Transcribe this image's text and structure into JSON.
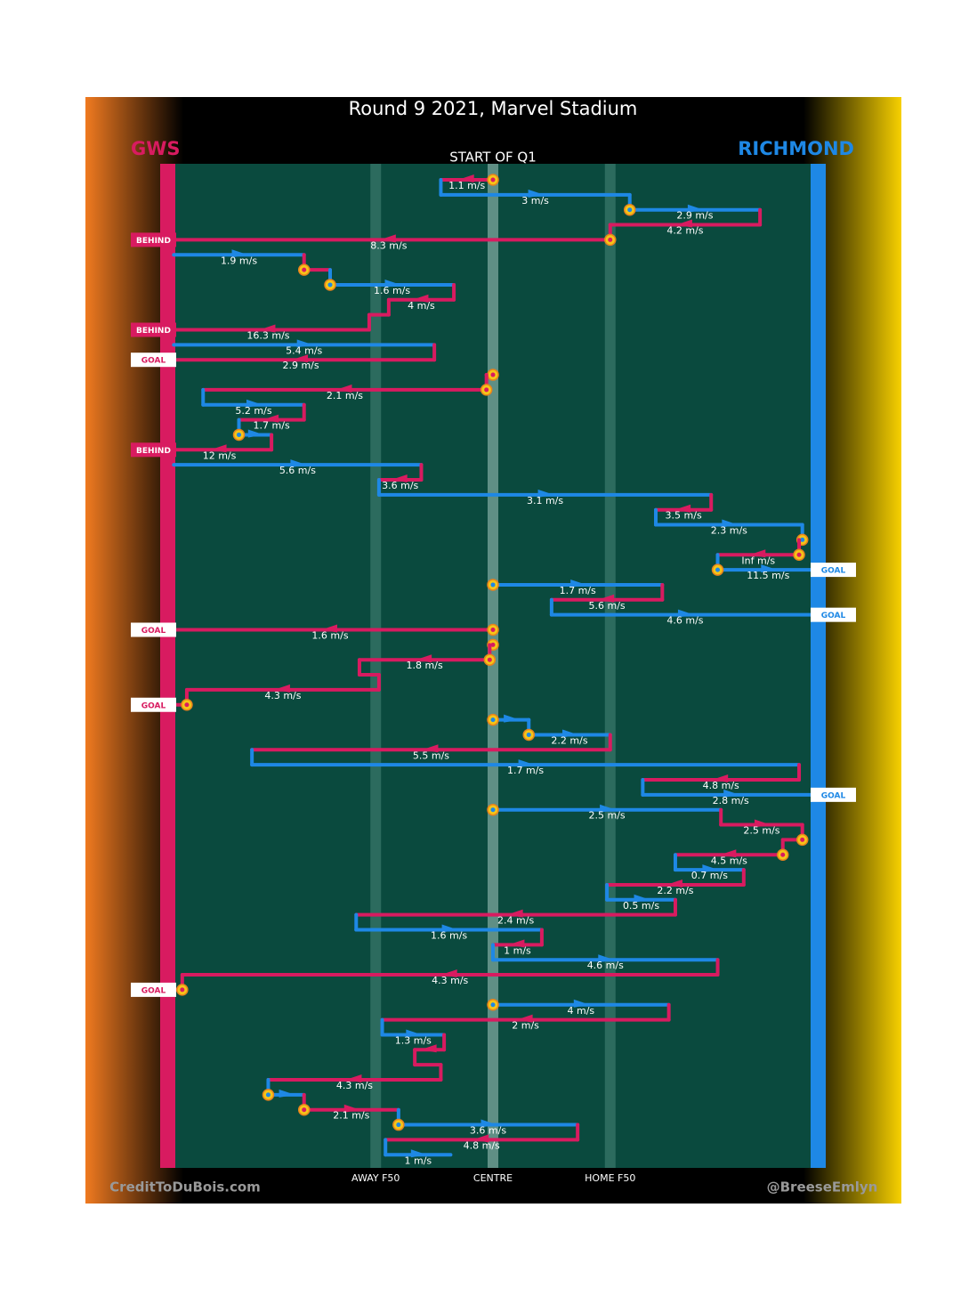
{
  "chart_data": {
    "type": "possession-flow",
    "title": "Round 9 2021, Marvel Stadium",
    "subtitle": "START OF Q1",
    "credit": "CreditToDuBois.com",
    "handle": "@BreeseEmlyn",
    "teams": [
      {
        "name": "GWS",
        "color": "#d81b60"
      },
      {
        "name": "RICHMOND",
        "color": "#1e88e5"
      }
    ],
    "xlim": [
      0,
      100
    ],
    "xticks": [
      {
        "value": 32,
        "label": "AWAY F50"
      },
      {
        "value": 50,
        "label": "CENTRE"
      },
      {
        "value": 68,
        "label": "HOME F50"
      }
    ],
    "moves": [
      {
        "team": "GWS",
        "from": 50,
        "to": 42,
        "label": "1.1 m/s",
        "contest": true
      },
      {
        "team": "RICHMOND",
        "from": 42,
        "to": 71,
        "label": "3 m/s"
      },
      {
        "team": "RICHMOND",
        "from": 71,
        "to": 91,
        "label": "2.9 m/s",
        "contest": true
      },
      {
        "team": "GWS",
        "from": 91,
        "to": 68,
        "label": "4.2 m/s"
      },
      {
        "team": "GWS",
        "from": 68,
        "to": 0,
        "label": "8.3 m/s",
        "contest": true,
        "outcome": "BEHIND"
      },
      {
        "team": "RICHMOND",
        "from": 1,
        "to": 21,
        "label": "1.9 m/s"
      },
      {
        "team": "GWS",
        "from": 21,
        "to": 25,
        "contest": true
      },
      {
        "team": "RICHMOND",
        "from": 25,
        "to": 44,
        "label": "1.6 m/s",
        "contest": true
      },
      {
        "team": "GWS",
        "from": 44,
        "to": 34,
        "label": "4 m/s"
      },
      {
        "team": "GWS",
        "from": 34,
        "to": 31
      },
      {
        "team": "GWS",
        "from": 31,
        "to": 0,
        "label": "16.3 m/s",
        "outcome": "BEHIND"
      },
      {
        "team": "RICHMOND",
        "from": 1,
        "to": 41,
        "label": "5.4 m/s"
      },
      {
        "team": "GWS",
        "from": 41,
        "to": 0,
        "label": "2.9 m/s",
        "outcome": "GOAL"
      },
      {
        "team": "GWS",
        "from": 50,
        "to": 49,
        "contest": true
      },
      {
        "team": "GWS",
        "from": 49,
        "to": 5.5,
        "label": "2.1 m/s",
        "contest": true
      },
      {
        "team": "RICHMOND",
        "from": 5.5,
        "to": 21,
        "label": "5.2 m/s"
      },
      {
        "team": "GWS",
        "from": 21,
        "to": 11,
        "label": "1.7 m/s"
      },
      {
        "team": "RICHMOND",
        "from": 11,
        "to": 16,
        "contest": true
      },
      {
        "team": "GWS",
        "from": 16,
        "to": 0,
        "label": "12 m/s",
        "outcome": "BEHIND"
      },
      {
        "team": "RICHMOND",
        "from": 1,
        "to": 39,
        "label": "5.6 m/s"
      },
      {
        "team": "GWS",
        "from": 39,
        "to": 32.5,
        "label": "3.6 m/s"
      },
      {
        "team": "RICHMOND",
        "from": 32.5,
        "to": 83.5,
        "label": "3.1 m/s"
      },
      {
        "team": "GWS",
        "from": 83.5,
        "to": 75,
        "label": "3.5 m/s"
      },
      {
        "team": "RICHMOND",
        "from": 75,
        "to": 97.5,
        "label": "2.3 m/s"
      },
      {
        "team": "RICHMOND",
        "from": 97.5,
        "to": 97,
        "contest": true
      },
      {
        "team": "GWS",
        "from": 97,
        "to": 84.5,
        "label": "Inf m/s",
        "contest": true
      },
      {
        "team": "RICHMOND",
        "from": 84.5,
        "to": 100,
        "label": "11.5 m/s",
        "contest": true,
        "outcome": "GOAL"
      },
      {
        "team": "RICHMOND",
        "from": 50,
        "to": 76,
        "label": "1.7 m/s",
        "contest": true
      },
      {
        "team": "GWS",
        "from": 76,
        "to": 59,
        "label": "5.6 m/s"
      },
      {
        "team": "RICHMOND",
        "from": 59,
        "to": 100,
        "label": "4.6 m/s",
        "outcome": "GOAL"
      },
      {
        "team": "GWS",
        "from": 50,
        "to": 0,
        "label": "1.6 m/s",
        "contest": true,
        "outcome": "GOAL"
      },
      {
        "team": "GWS",
        "from": 50,
        "to": 49.5,
        "contest": true
      },
      {
        "team": "GWS",
        "from": 49.5,
        "to": 29.5,
        "label": "1.8 m/s",
        "contest": true
      },
      {
        "team": "GWS",
        "from": 29.5,
        "to": 32.5
      },
      {
        "team": "GWS",
        "from": 32.5,
        "to": 3,
        "label": "4.3 m/s"
      },
      {
        "team": "GWS",
        "from": 3,
        "to": 0,
        "contest": true,
        "outcome": "GOAL"
      },
      {
        "team": "RICHMOND",
        "from": 50,
        "to": 55.5,
        "contest": true
      },
      {
        "team": "RICHMOND",
        "from": 55.5,
        "to": 68,
        "label": "2.2 m/s",
        "contest": true
      },
      {
        "team": "GWS",
        "from": 68,
        "to": 13,
        "label": "5.5 m/s"
      },
      {
        "team": "RICHMOND",
        "from": 13,
        "to": 97,
        "label": "1.7 m/s"
      },
      {
        "team": "GWS",
        "from": 97,
        "to": 73,
        "label": "4.8 m/s"
      },
      {
        "team": "RICHMOND",
        "from": 73,
        "to": 100,
        "label": "2.8 m/s",
        "outcome": "GOAL"
      },
      {
        "team": "RICHMOND",
        "from": 50,
        "to": 85,
        "label": "2.5 m/s",
        "contest": true
      },
      {
        "team": "GWS",
        "from": 85,
        "to": 97.5,
        "label": "2.5 m/s"
      },
      {
        "team": "GWS",
        "from": 97.5,
        "to": 94.5,
        "contest": true
      },
      {
        "team": "GWS",
        "from": 94.5,
        "to": 78,
        "label": "4.5 m/s",
        "contest": true
      },
      {
        "team": "RICHMOND",
        "from": 78,
        "to": 88.5,
        "label": "0.7 m/s"
      },
      {
        "team": "GWS",
        "from": 88.5,
        "to": 67.5,
        "label": "2.2 m/s"
      },
      {
        "team": "RICHMOND",
        "from": 67.5,
        "to": 78,
        "label": "0.5 m/s"
      },
      {
        "team": "GWS",
        "from": 78,
        "to": 29,
        "label": "2.4 m/s"
      },
      {
        "team": "RICHMOND",
        "from": 29,
        "to": 57.5,
        "label": "1.6 m/s"
      },
      {
        "team": "GWS",
        "from": 57.5,
        "to": 50,
        "label": "1 m/s"
      },
      {
        "team": "RICHMOND",
        "from": 50,
        "to": 84.5,
        "label": "4.6 m/s"
      },
      {
        "team": "GWS",
        "from": 84.5,
        "to": 2.3,
        "label": "4.3 m/s"
      },
      {
        "team": "GWS",
        "from": 2.3,
        "to": 0,
        "contest": true,
        "outcome": "GOAL"
      },
      {
        "team": "RICHMOND",
        "from": 50,
        "to": 77,
        "label": "4 m/s",
        "contest": true
      },
      {
        "team": "GWS",
        "from": 77,
        "to": 33,
        "label": "2 m/s"
      },
      {
        "team": "RICHMOND",
        "from": 33,
        "to": 42.5,
        "label": "1.3 m/s"
      },
      {
        "team": "GWS",
        "from": 42.5,
        "to": 38
      },
      {
        "team": "GWS",
        "from": 38,
        "to": 42
      },
      {
        "team": "GWS",
        "from": 42,
        "to": 15.5,
        "label": "4.3 m/s"
      },
      {
        "team": "RICHMOND",
        "from": 15.5,
        "to": 21,
        "contest": true
      },
      {
        "team": "GWS",
        "from": 21,
        "to": 35.5,
        "label": "2.1 m/s",
        "contest": true
      },
      {
        "team": "RICHMOND",
        "from": 35.5,
        "to": 63,
        "label": "3.6 m/s",
        "contest": true
      },
      {
        "team": "GWS",
        "from": 63,
        "to": 33.5,
        "label": "4.8 m/s"
      },
      {
        "team": "RICHMOND",
        "from": 33.5,
        "to": 43.5,
        "label": "1 m/s"
      }
    ]
  }
}
